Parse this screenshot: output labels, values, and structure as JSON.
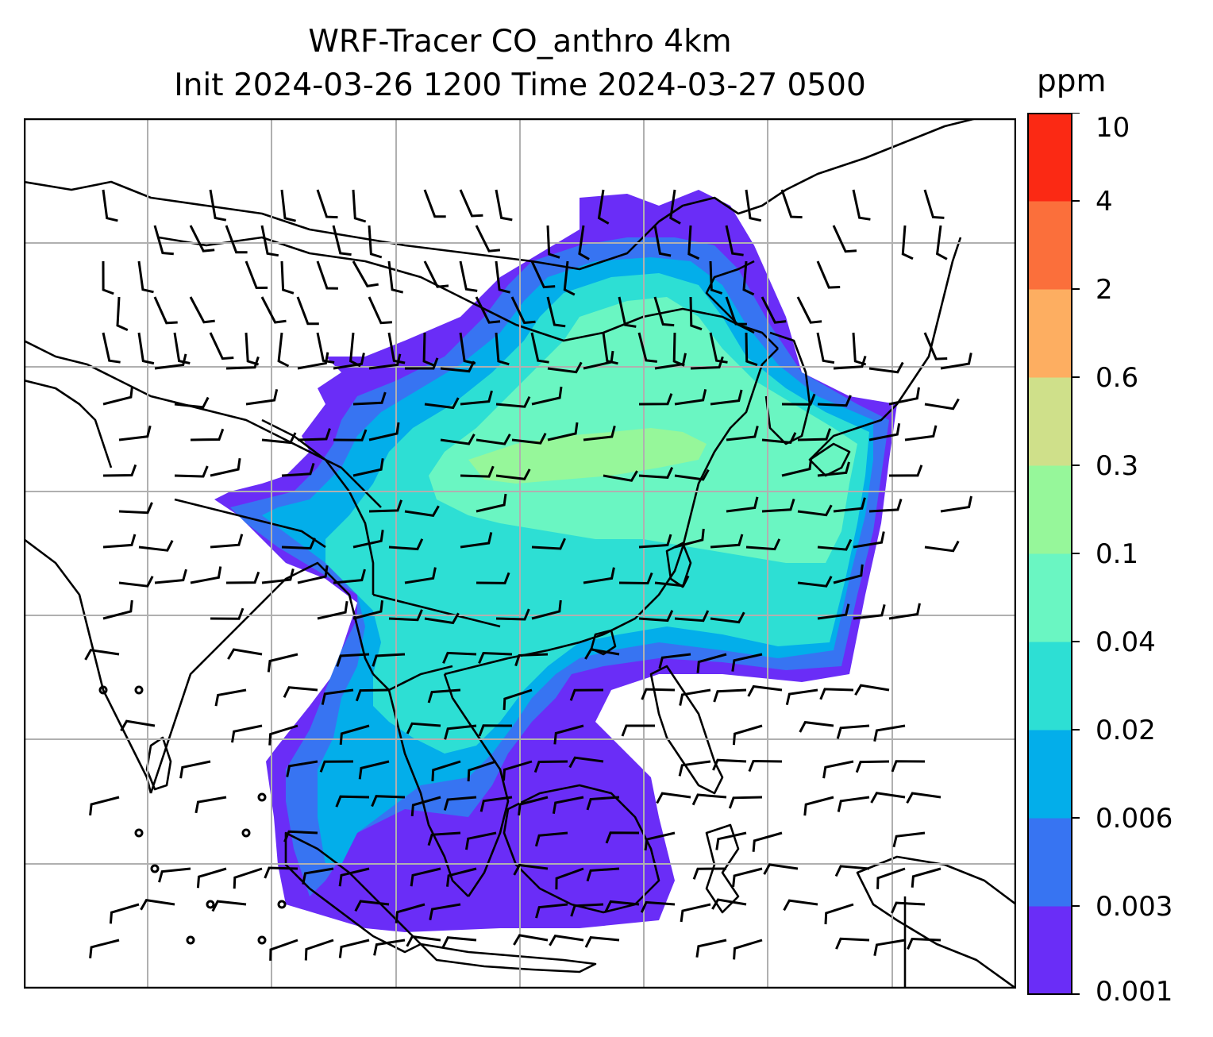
{
  "title": {
    "line1": "WRF-Tracer CO_anthro 4km",
    "line2": "Init 2024-03-26 1200 Time 2024-03-27 0500"
  },
  "colorbar": {
    "unit": "ppm",
    "levels": [
      "0.001",
      "0.003",
      "0.006",
      "0.02",
      "0.04",
      "0.1",
      "0.3",
      "0.6",
      "2",
      "4",
      "10"
    ],
    "colors": [
      "#6a2df7",
      "#3774f2",
      "#03aeea",
      "#2ddfd4",
      "#6af6c2",
      "#96f79a",
      "#cfe08a",
      "#fdae61",
      "#fb6f3b",
      "#fb2914"
    ]
  },
  "map": {
    "gridlines": true,
    "plume_colors": {
      "faint": "#6a2df7",
      "low": "#3774f2",
      "mid": "#03aeea",
      "midhigh": "#2ddfd4",
      "high": "#6af6c2",
      "peak": "#96f79a"
    },
    "wind_barbs": true,
    "coastline_color": "#000000",
    "grid_color": "#b0b0b0"
  }
}
